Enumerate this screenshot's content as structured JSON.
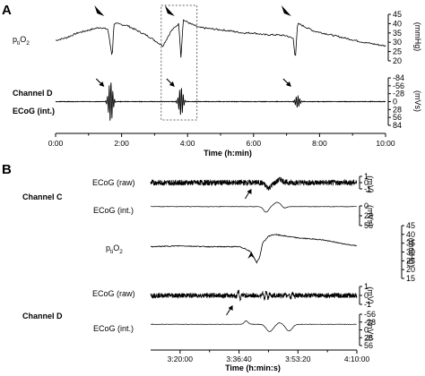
{
  "panels": [
    {
      "label": "A",
      "xlabel": "Time (h:min)",
      "x_ticks": [
        "0:00",
        "2:00",
        "4:00",
        "6:00",
        "8:00",
        "10:00"
      ],
      "highlight_window_min": [
        192,
        257
      ],
      "traces": [
        {
          "name": "p_tiO2",
          "label": "p",
          "label_sub": "ti",
          "label_tail": "O",
          "label_sub2": "2",
          "unit": "(mmHg)",
          "scale_ticks": [
            "45",
            "40",
            "35",
            "30",
            "25",
            "20"
          ],
          "arrowheads_min": [
            100,
            228,
            440
          ]
        },
        {
          "name": "channel-d-ecog-int",
          "labels": [
            "Channel D",
            "ECoG (int.)"
          ],
          "unit": "(mVs)",
          "scale_ticks": [
            "-84",
            "-56",
            "-28",
            "0",
            "28",
            "56",
            "84"
          ],
          "arrows_min": [
            100,
            228,
            440
          ]
        }
      ]
    },
    {
      "label": "B",
      "xlabel": "Time (h:min:s)",
      "x_ticks": [
        "3:20:00",
        "3:36:40",
        "3:53:20",
        "4:10:00"
      ],
      "groups": [
        "Channel C",
        "Channel D"
      ],
      "traces": [
        {
          "name": "channel-c-ecog-raw",
          "label": "ECoG (raw)",
          "unit": "(mV)",
          "scale_ticks": [
            "1",
            "0",
            "-1"
          ]
        },
        {
          "name": "channel-c-ecog-int",
          "label": "ECoG (int.)",
          "unit": "(mVs)",
          "scale_ticks": [
            "0",
            "28",
            "56"
          ]
        },
        {
          "name": "b-ptio2",
          "label": "p",
          "label_sub": "ti",
          "label_tail": "O",
          "label_sub2": "2",
          "unit": "(mmHg)",
          "scale_ticks": [
            "45",
            "40",
            "35",
            "30",
            "25",
            "20",
            "15"
          ]
        },
        {
          "name": "channel-d-ecog-raw",
          "label": "ECoG (raw)",
          "unit": "(mV)",
          "scale_ticks": [
            "1",
            "0",
            "-1"
          ]
        },
        {
          "name": "channel-d-ecog-int",
          "label": "ECoG (int.)",
          "unit": "(mVs)",
          "scale_ticks": [
            "-56",
            "-28",
            "0",
            "28",
            "56"
          ]
        }
      ]
    }
  ],
  "chart_data": [
    {
      "type": "line",
      "x_unit": "min",
      "x_range": [
        0,
        600
      ],
      "series": [
        {
          "name": "p_tiO2",
          "y_range": [
            20,
            45
          ],
          "x": [
            0,
            20,
            40,
            60,
            80,
            95,
            103,
            106,
            110,
            130,
            150,
            170,
            185,
            195,
            210,
            224,
            228,
            232,
            245,
            260,
            290,
            320,
            340,
            360,
            380,
            400,
            420,
            432,
            436,
            440,
            445,
            470,
            500,
            530,
            560,
            580,
            600
          ],
          "y": [
            31,
            32.5,
            35,
            36.5,
            38,
            37,
            22,
            40,
            40,
            39,
            36,
            33,
            30,
            28,
            36,
            40,
            22,
            42,
            40,
            38,
            37,
            36,
            35,
            35,
            34,
            34,
            33.5,
            32,
            21,
            40,
            39.5,
            36,
            34,
            32,
            30,
            29,
            28
          ]
        },
        {
          "name": "Channel D ECoG (int.)",
          "y_range": [
            -84,
            84
          ],
          "events_min": [
            100,
            228,
            440
          ],
          "event_amplitude": [
            75,
            52,
            22
          ]
        }
      ]
    },
    {
      "type": "line",
      "x_unit": "s",
      "x_range_s": [
        11500,
        15000
      ],
      "series": [
        {
          "name": "Channel C ECoG (raw)",
          "y_range": [
            -1,
            1
          ],
          "event_s": [
            13500,
            13700
          ]
        },
        {
          "name": "Channel C ECoG (int.)",
          "y_range": [
            0,
            56
          ],
          "event_s": [
            13460,
            13650
          ]
        },
        {
          "name": "p_tiO2",
          "y_range": [
            15,
            45
          ],
          "x": [
            11500,
            12000,
            12500,
            13000,
            13100,
            13200,
            13300,
            13350,
            13400,
            13500,
            13600,
            13800,
            14000,
            14400,
            14800,
            15000
          ],
          "y": [
            33,
            33.5,
            33,
            33,
            32,
            30,
            24,
            27,
            35,
            39,
            40,
            39,
            38,
            37,
            34.5,
            33.5
          ]
        },
        {
          "name": "Channel D ECoG (raw)",
          "y_range": [
            -1,
            1
          ],
          "event_s": [
            13000,
            13450,
            13900
          ]
        },
        {
          "name": "Channel D ECoG (int.)",
          "y_range": [
            -56,
            56
          ],
          "event_s": [
            13120,
            13520,
            13850
          ]
        }
      ]
    }
  ]
}
